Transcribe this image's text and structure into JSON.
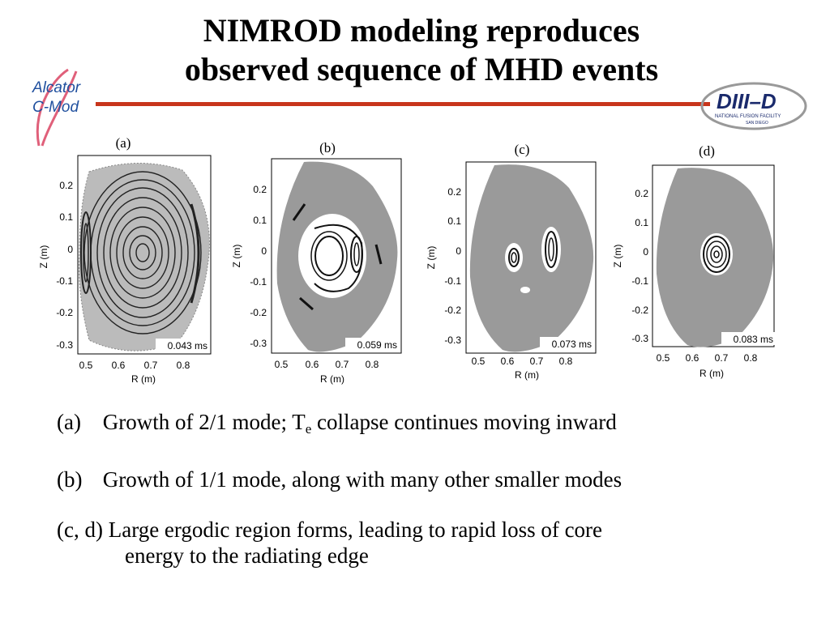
{
  "title": {
    "line1": "NIMROD modeling reproduces",
    "line2": "observed sequence of MHD events"
  },
  "logos": {
    "left": {
      "line1": "Alcator",
      "line2": "C-Mod"
    },
    "right": {
      "main": "DIII–D",
      "sub1": "NATIONAL FUSION FACILITY",
      "sub2": "SAN DIEGO"
    }
  },
  "panels": [
    {
      "label": "(a)",
      "time": "0.043 ms",
      "y_axis_label": "Z (m)",
      "x_axis_label": "R (m)",
      "yticks": [
        "0.2",
        "0.1",
        "0",
        "-0.1",
        "-0.2",
        "-0.3"
      ],
      "xticks": [
        "0.5",
        "0.6",
        "0.7",
        "0.8"
      ]
    },
    {
      "label": "(b)",
      "time": "0.059 ms",
      "y_axis_label": "Z (m)",
      "x_axis_label": "R (m)",
      "yticks": [
        "0.2",
        "0.1",
        "0",
        "-0.1",
        "-0.2",
        "-0.3"
      ],
      "xticks": [
        "0.5",
        "0.6",
        "0.7",
        "0.8"
      ]
    },
    {
      "label": "(c)",
      "time": "0.073 ms",
      "y_axis_label": "Z (m)",
      "x_axis_label": "R (m)",
      "yticks": [
        "0.2",
        "0.1",
        "0",
        "-0.1",
        "-0.2",
        "-0.3"
      ],
      "xticks": [
        "0.5",
        "0.6",
        "0.7",
        "0.8"
      ]
    },
    {
      "label": "(d)",
      "time": "0.083 ms",
      "y_axis_label": "Z (m)",
      "x_axis_label": "R (m)",
      "yticks": [
        "0.2",
        "0.1",
        "0",
        "-0.1",
        "-0.2",
        "-0.3"
      ],
      "xticks": [
        "0.5",
        "0.6",
        "0.7",
        "0.8"
      ]
    }
  ],
  "bullets": {
    "a_label": "(a)",
    "a_text_pre": "Growth of 2/1 mode; T",
    "a_sub": "e",
    "a_text_post": " collapse continues moving inward",
    "b_label": "(b)",
    "b_text": "Growth of 1/1 mode, along with many other smaller modes",
    "cd_line1": "(c, d) Large ergodic region forms, leading to rapid loss of core",
    "cd_line2": "energy to the radiating edge"
  },
  "colors": {
    "accent_rule": "#c8351c",
    "cmod_blue": "#1f4f9e",
    "cmod_ribbon": "#e0607a",
    "diiid_navy": "#1a2a6c"
  }
}
